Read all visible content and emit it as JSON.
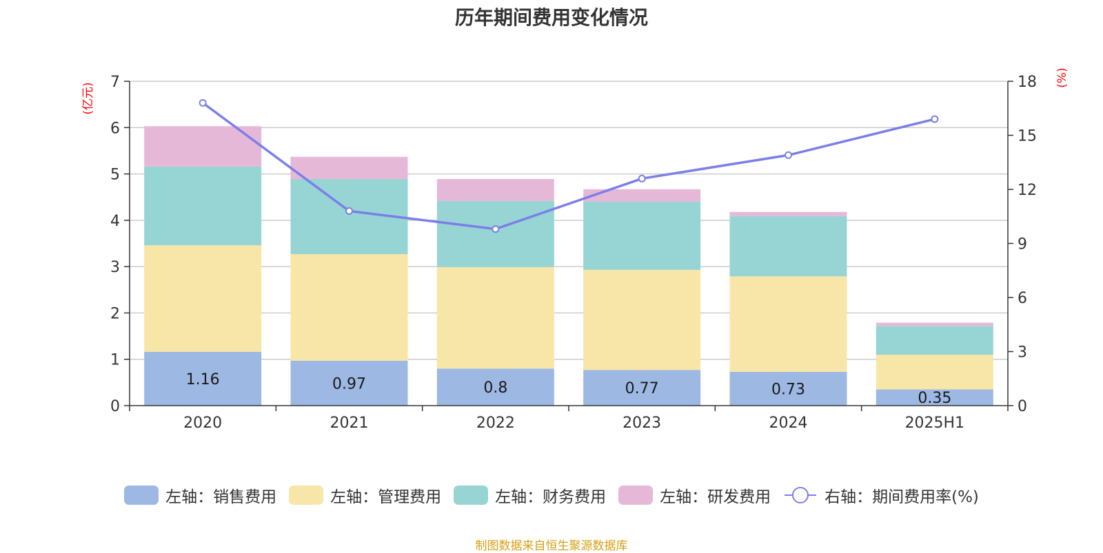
{
  "chart_data": {
    "type": "bar",
    "title": "历年期间费用变化情况",
    "categories": [
      "2020",
      "2021",
      "2022",
      "2023",
      "2024",
      "2025H1"
    ],
    "stacked": true,
    "left_axis": {
      "unit": "(亿元)",
      "ylim": [
        0,
        7
      ],
      "ticks": [
        "0",
        "1",
        "2",
        "3",
        "4",
        "5",
        "6",
        "7"
      ]
    },
    "right_axis": {
      "unit": "(%)",
      "ylim": [
        0,
        18
      ],
      "ticks": [
        "0",
        "3",
        "6",
        "9",
        "12",
        "15",
        "18"
      ]
    },
    "series": [
      {
        "name": "左轴：销售费用",
        "axis": "left",
        "color": "#9db8e2",
        "values": [
          1.16,
          0.97,
          0.8,
          0.77,
          0.73,
          0.35
        ],
        "labels": [
          "1.16",
          "0.97",
          "0.8",
          "0.77",
          "0.73",
          "0.35"
        ]
      },
      {
        "name": "左轴：管理费用",
        "axis": "left",
        "color": "#f7e6a8",
        "values": [
          2.3,
          2.3,
          2.19,
          2.16,
          2.06,
          0.75
        ]
      },
      {
        "name": "左轴：财务费用",
        "axis": "left",
        "color": "#97d4d4",
        "values": [
          1.7,
          1.62,
          1.43,
          1.47,
          1.3,
          0.62
        ]
      },
      {
        "name": "左轴：研发费用",
        "axis": "left",
        "color": "#e6b8d8",
        "values": [
          0.87,
          0.48,
          0.47,
          0.27,
          0.09,
          0.07
        ]
      },
      {
        "name": "右轴：期间费用率(%)",
        "axis": "right",
        "type": "line",
        "color": "#7b7fe8",
        "values": [
          16.8,
          10.8,
          9.8,
          12.6,
          13.9,
          15.9
        ]
      }
    ],
    "grid": true,
    "legend_position": "bottom"
  },
  "footer": {
    "source": "制图数据来自恒生聚源数据库"
  }
}
